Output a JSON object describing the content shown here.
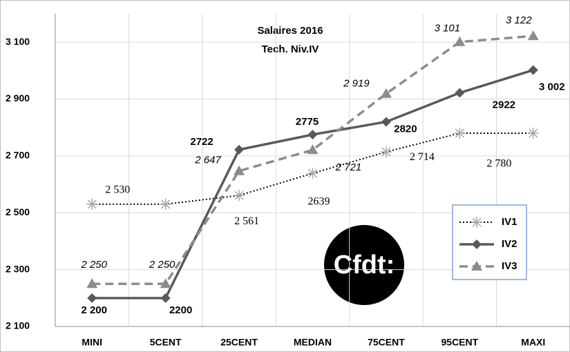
{
  "chart_data": {
    "type": "line",
    "title": "Salaires 2016",
    "subtitle": "Tech. Niv.IV",
    "logo": "Cfdt:",
    "categories": [
      "MINI",
      "5CENT",
      "25CENT",
      "MEDIAN",
      "75CENT",
      "95CENT",
      "MAXI"
    ],
    "series": [
      {
        "name": "IV1",
        "color": "#000000",
        "marker_color": "#a6a6a6",
        "style": "dotted",
        "marker": "asterisk",
        "values": [
          2530,
          2530,
          2561,
          2639,
          2714,
          2780,
          2780
        ],
        "value_labels": [
          "2 530",
          null,
          "2 561",
          "2639",
          "2 714",
          "2 780",
          null
        ]
      },
      {
        "name": "IV2",
        "color": "#595959",
        "style": "solid",
        "marker": "diamond",
        "values": [
          2200,
          2200,
          2722,
          2775,
          2820,
          2922,
          3002
        ],
        "value_labels": [
          "2 200",
          "2200",
          "2722",
          "2775",
          "2820",
          "2922",
          "3 002"
        ]
      },
      {
        "name": "IV3",
        "color": "#8c8c8c",
        "style": "dashed",
        "marker": "triangle",
        "values": [
          2250,
          2250,
          2647,
          2721,
          2919,
          3101,
          3122
        ],
        "value_labels": [
          "2 250",
          "2 250",
          "2 647",
          "2 721",
          "2 919",
          "3 101",
          "3 122"
        ]
      }
    ],
    "ylim": [
      2100,
      3200
    ],
    "yticks": [
      {
        "value": 2100,
        "label": "2 100"
      },
      {
        "value": 2300,
        "label": "2 300"
      },
      {
        "value": 2500,
        "label": "2 500"
      },
      {
        "value": 2700,
        "label": "2 700"
      },
      {
        "value": 2900,
        "label": "2 900"
      },
      {
        "value": 3100,
        "label": "3 100"
      }
    ],
    "grid": true,
    "legend": "lower right"
  }
}
